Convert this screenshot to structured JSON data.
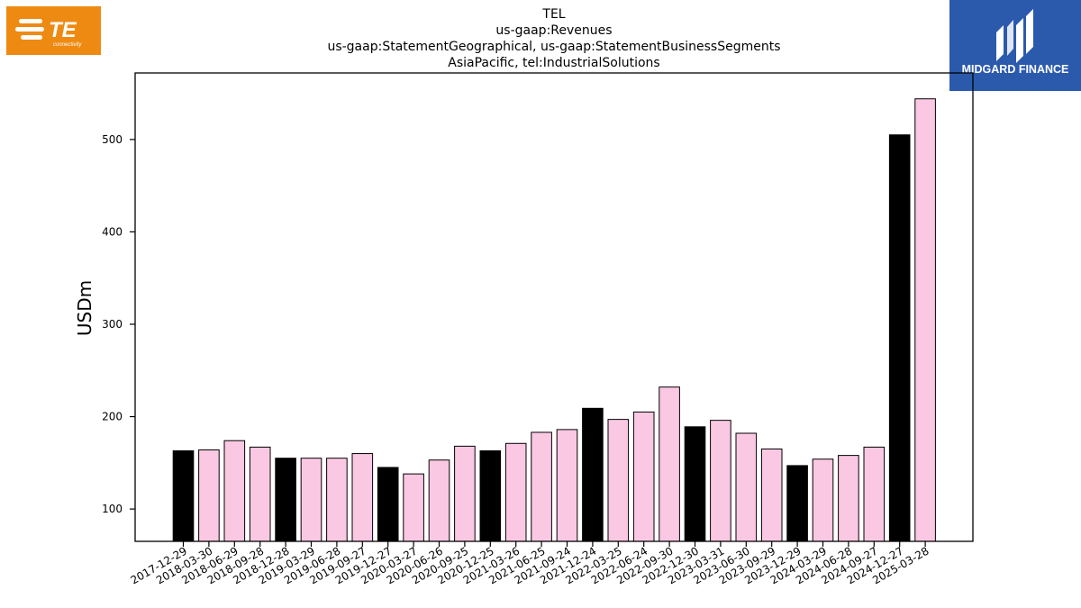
{
  "titles": {
    "line1": "TEL",
    "line2": "us-gaap:Revenues",
    "line3": "us-gaap:StatementGeographical, us-gaap:StatementBusinessSegments",
    "line4": "AsiaPacific, tel:IndustrialSolutions"
  },
  "logos": {
    "te_text": "TE",
    "te_subtext": "connectivity",
    "te_color": "#ee8a12",
    "midgard_text": "MIDGARD FINANCE",
    "midgard_color": "#2b5aad"
  },
  "chart_data": {
    "type": "bar",
    "title": "TEL",
    "ylabel": "USDm",
    "xlabel": "",
    "ylim": [
      65,
      572
    ],
    "yticks": [
      100,
      200,
      300,
      400,
      500
    ],
    "grid": false,
    "colors": {
      "q4": "#000000",
      "other": "#fbc8e3",
      "edge": "#000000"
    },
    "categories": [
      "2017-12-29",
      "2018-03-30",
      "2018-06-29",
      "2018-09-28",
      "2018-12-28",
      "2019-03-29",
      "2019-06-28",
      "2019-09-27",
      "2019-12-27",
      "2020-03-27",
      "2020-06-26",
      "2020-09-25",
      "2020-12-25",
      "2021-03-26",
      "2021-06-25",
      "2021-09-24",
      "2021-12-24",
      "2022-03-25",
      "2022-06-24",
      "2022-09-30",
      "2022-12-30",
      "2023-03-31",
      "2023-06-30",
      "2023-09-29",
      "2023-12-29",
      "2024-03-29",
      "2024-06-28",
      "2024-09-27",
      "2024-12-27",
      "2025-03-28"
    ],
    "values": [
      163,
      164,
      174,
      167,
      155,
      155,
      155,
      160,
      145,
      138,
      153,
      168,
      163,
      171,
      183,
      186,
      209,
      197,
      205,
      232,
      189,
      196,
      182,
      165,
      147,
      154,
      158,
      167,
      505,
      544
    ],
    "highlight": [
      true,
      false,
      false,
      false,
      true,
      false,
      false,
      false,
      true,
      false,
      false,
      false,
      true,
      false,
      false,
      false,
      true,
      false,
      false,
      false,
      true,
      false,
      false,
      false,
      true,
      false,
      false,
      false,
      true,
      false
    ]
  }
}
